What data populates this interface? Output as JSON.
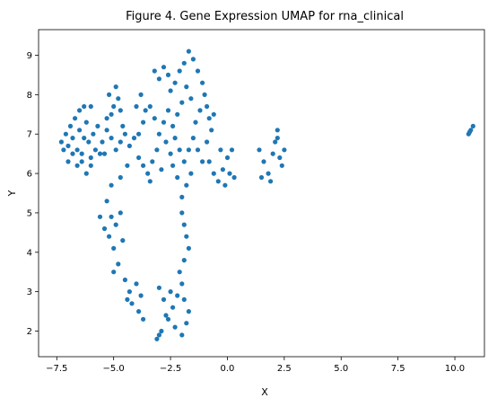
{
  "chart_data": {
    "type": "scatter",
    "title": "Figure 4. Gene Expression UMAP for rna_clinical",
    "xlabel": "X",
    "ylabel": "Y",
    "xlim": [
      -8.3,
      11.3
    ],
    "ylim": [
      1.35,
      9.65
    ],
    "xticks": [
      -7.5,
      -5.0,
      -2.5,
      0.0,
      2.5,
      5.0,
      7.5,
      10.0
    ],
    "xtick_labels": [
      "−7.5",
      "−5.0",
      "−2.5",
      "0.0",
      "2.5",
      "5.0",
      "7.5",
      "10.0"
    ],
    "yticks": [
      2,
      3,
      4,
      5,
      6,
      7,
      8,
      9
    ],
    "ytick_labels": [
      "2",
      "3",
      "4",
      "5",
      "6",
      "7",
      "8",
      "9"
    ],
    "grid": false,
    "legend": false,
    "marker_color": "#1f77b4",
    "points": [
      [
        -7.3,
        6.8
      ],
      [
        -7.1,
        7.0
      ],
      [
        -7.0,
        6.7
      ],
      [
        -6.9,
        7.2
      ],
      [
        -6.8,
        6.9
      ],
      [
        -6.7,
        7.4
      ],
      [
        -6.6,
        6.6
      ],
      [
        -6.5,
        7.1
      ],
      [
        -6.4,
        6.5
      ],
      [
        -6.3,
        6.9
      ],
      [
        -6.2,
        7.3
      ],
      [
        -6.1,
        6.8
      ],
      [
        -6.0,
        6.4
      ],
      [
        -5.9,
        7.0
      ],
      [
        -6.6,
        6.2
      ],
      [
        -6.4,
        6.3
      ],
      [
        -6.8,
        6.5
      ],
      [
        -7.0,
        6.3
      ],
      [
        -7.2,
        6.6
      ],
      [
        -6.5,
        7.6
      ],
      [
        -6.3,
        7.7
      ],
      [
        -6.0,
        7.7
      ],
      [
        -5.8,
        6.6
      ],
      [
        -5.7,
        7.2
      ],
      [
        -5.6,
        6.5
      ],
      [
        -6.2,
        6.0
      ],
      [
        -6.0,
        6.2
      ],
      [
        -5.2,
        8.0
      ],
      [
        -5.0,
        7.7
      ],
      [
        -4.8,
        7.9
      ],
      [
        -5.1,
        7.5
      ],
      [
        -4.9,
        8.2
      ],
      [
        -4.7,
        7.6
      ],
      [
        -5.3,
        7.4
      ],
      [
        -4.6,
        7.2
      ],
      [
        -4.5,
        7.0
      ],
      [
        -4.7,
        6.8
      ],
      [
        -4.9,
        6.6
      ],
      [
        -5.1,
        6.9
      ],
      [
        -5.3,
        7.1
      ],
      [
        -5.5,
        6.8
      ],
      [
        -5.4,
        6.5
      ],
      [
        -4.3,
        6.7
      ],
      [
        -4.1,
        6.9
      ],
      [
        -3.9,
        7.0
      ],
      [
        -3.7,
        7.3
      ],
      [
        -4.0,
        7.7
      ],
      [
        -3.8,
        8.0
      ],
      [
        -3.6,
        7.6
      ],
      [
        -3.9,
        6.4
      ],
      [
        -3.7,
        6.2
      ],
      [
        -3.5,
        6.0
      ],
      [
        -3.3,
        6.3
      ],
      [
        -3.1,
        6.6
      ],
      [
        -2.9,
        6.1
      ],
      [
        -3.4,
        5.8
      ],
      [
        -3.2,
        8.6
      ],
      [
        -3.0,
        8.4
      ],
      [
        -2.8,
        8.7
      ],
      [
        -2.6,
        8.5
      ],
      [
        -2.5,
        8.1
      ],
      [
        -2.3,
        8.3
      ],
      [
        -2.1,
        8.6
      ],
      [
        -1.9,
        8.8
      ],
      [
        -1.7,
        9.1
      ],
      [
        -1.5,
        8.9
      ],
      [
        -1.3,
        8.6
      ],
      [
        -1.1,
        8.3
      ],
      [
        -1.0,
        8.0
      ],
      [
        -0.9,
        7.7
      ],
      [
        -0.8,
        7.4
      ],
      [
        -0.7,
        7.1
      ],
      [
        -0.6,
        7.5
      ],
      [
        -1.2,
        7.6
      ],
      [
        -1.4,
        7.3
      ],
      [
        -1.6,
        7.9
      ],
      [
        -1.8,
        8.2
      ],
      [
        -2.0,
        7.8
      ],
      [
        -2.2,
        7.5
      ],
      [
        -2.4,
        7.2
      ],
      [
        -2.6,
        7.6
      ],
      [
        -2.8,
        7.3
      ],
      [
        -3.0,
        7.0
      ],
      [
        -2.7,
        6.8
      ],
      [
        -2.5,
        6.5
      ],
      [
        -2.3,
        6.9
      ],
      [
        -2.1,
        6.6
      ],
      [
        -1.9,
        6.3
      ],
      [
        -1.7,
        6.6
      ],
      [
        -1.5,
        6.9
      ],
      [
        -1.3,
        6.6
      ],
      [
        -1.1,
        6.3
      ],
      [
        -0.9,
        6.8
      ],
      [
        -1.6,
        6.0
      ],
      [
        -1.8,
        5.7
      ],
      [
        -2.0,
        5.4
      ],
      [
        -2.2,
        5.9
      ],
      [
        -2.4,
        6.2
      ],
      [
        -2.0,
        5.0
      ],
      [
        -1.9,
        4.7
      ],
      [
        -1.8,
        4.4
      ],
      [
        -1.7,
        4.1
      ],
      [
        -1.9,
        3.8
      ],
      [
        -2.1,
        3.5
      ],
      [
        -2.0,
        3.2
      ],
      [
        -2.2,
        2.9
      ],
      [
        -2.4,
        2.6
      ],
      [
        -2.6,
        2.3
      ],
      [
        -2.3,
        2.1
      ],
      [
        -2.0,
        1.9
      ],
      [
        -1.8,
        2.2
      ],
      [
        -1.7,
        2.5
      ],
      [
        -1.9,
        2.8
      ],
      [
        -2.5,
        3.0
      ],
      [
        -2.8,
        2.8
      ],
      [
        -3.0,
        3.1
      ],
      [
        -2.7,
        2.4
      ],
      [
        -2.9,
        2.0
      ],
      [
        -3.1,
        1.8
      ],
      [
        -3.0,
        1.9
      ],
      [
        -4.5,
        3.3
      ],
      [
        -4.3,
        3.0
      ],
      [
        -4.2,
        2.7
      ],
      [
        -4.0,
        3.2
      ],
      [
        -3.8,
        2.9
      ],
      [
        -3.9,
        2.5
      ],
      [
        -3.7,
        2.3
      ],
      [
        -4.4,
        2.8
      ],
      [
        -4.8,
        3.7
      ],
      [
        -5.0,
        4.1
      ],
      [
        -5.2,
        4.4
      ],
      [
        -4.9,
        4.7
      ],
      [
        -5.1,
        4.9
      ],
      [
        -5.4,
        4.6
      ],
      [
        -5.6,
        4.9
      ],
      [
        -5.3,
        5.3
      ],
      [
        -5.1,
        5.7
      ],
      [
        -4.7,
        5.9
      ],
      [
        -4.4,
        6.2
      ],
      [
        -5.0,
        3.5
      ],
      [
        -4.6,
        4.3
      ],
      [
        -4.7,
        5.0
      ],
      [
        -3.2,
        7.4
      ],
      [
        -3.4,
        7.7
      ],
      [
        -0.8,
        6.3
      ],
      [
        -0.6,
        6.0
      ],
      [
        -0.4,
        5.8
      ],
      [
        -0.2,
        6.1
      ],
      [
        0.0,
        6.4
      ],
      [
        0.2,
        6.6
      ],
      [
        0.1,
        6.0
      ],
      [
        -0.1,
        5.7
      ],
      [
        0.3,
        5.9
      ],
      [
        -0.3,
        6.6
      ],
      [
        1.4,
        6.6
      ],
      [
        1.6,
        6.3
      ],
      [
        1.8,
        6.0
      ],
      [
        2.0,
        6.5
      ],
      [
        2.1,
        6.8
      ],
      [
        2.2,
        7.1
      ],
      [
        2.3,
        6.4
      ],
      [
        2.4,
        6.2
      ],
      [
        2.5,
        6.6
      ],
      [
        1.9,
        5.8
      ],
      [
        1.5,
        5.9
      ],
      [
        2.2,
        6.9
      ],
      [
        10.6,
        7.0
      ],
      [
        10.7,
        7.1
      ],
      [
        10.8,
        7.2
      ],
      [
        10.65,
        7.05
      ]
    ]
  }
}
